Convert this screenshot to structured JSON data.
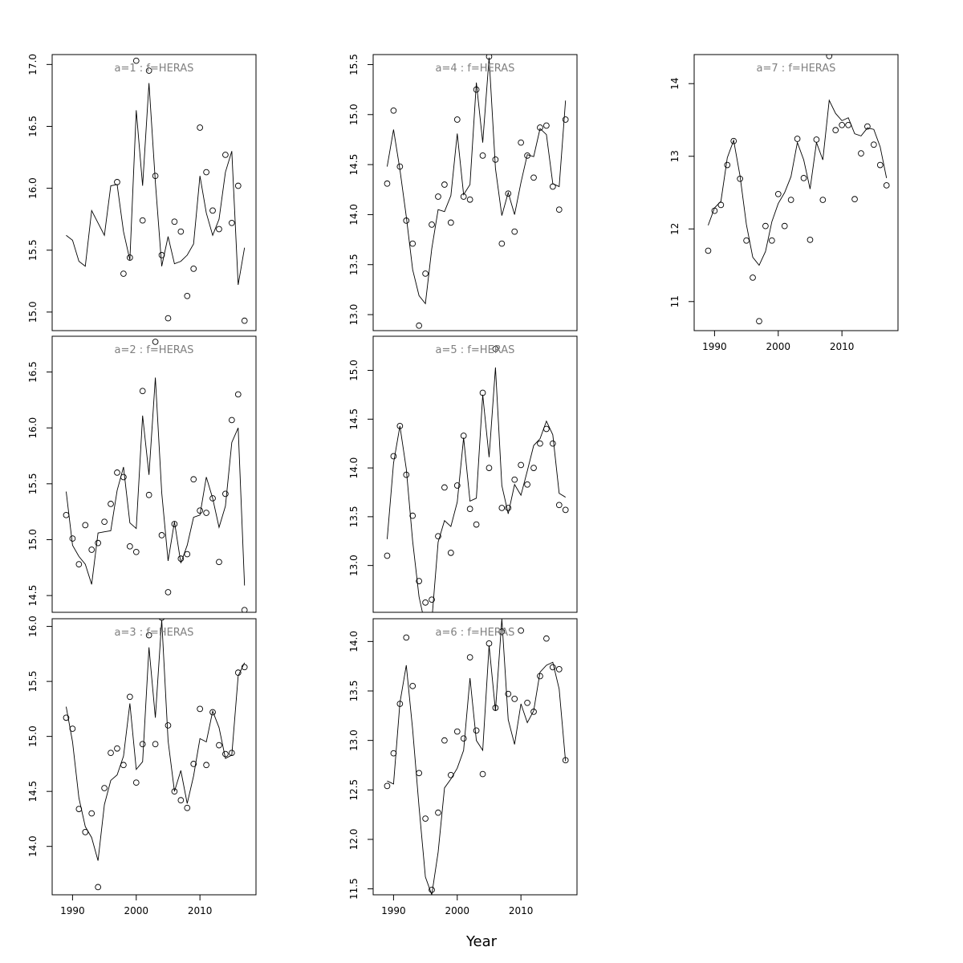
{
  "figure": {
    "xlabel": "Year"
  },
  "chart_data": [
    {
      "type": "line",
      "title": "a=1 : f=HERAS",
      "x": [
        1989,
        1990,
        1991,
        1992,
        1993,
        1994,
        1995,
        1996,
        1997,
        1998,
        1999,
        2000,
        2001,
        2002,
        2003,
        2004,
        2005,
        2006,
        2007,
        2008,
        2009,
        2010,
        2011,
        2012,
        2013,
        2014,
        2015,
        2016,
        2017
      ],
      "series": [
        {
          "kind": "points",
          "values": [
            null,
            null,
            null,
            null,
            null,
            null,
            null,
            null,
            16.05,
            15.31,
            15.44,
            17.03,
            15.74,
            16.95,
            16.1,
            15.46,
            14.95,
            15.73,
            15.65,
            15.13,
            15.35,
            16.49,
            16.13,
            15.82,
            15.67,
            16.27,
            15.72,
            16.02,
            14.93
          ]
        },
        {
          "kind": "line",
          "values": [
            15.62,
            15.58,
            15.41,
            15.37,
            15.82,
            15.72,
            15.62,
            16.02,
            16.03,
            15.65,
            15.42,
            16.63,
            16.02,
            16.85,
            16.05,
            15.37,
            15.61,
            15.39,
            15.41,
            15.46,
            15.55,
            16.1,
            15.8,
            15.62,
            15.75,
            16.13,
            16.3,
            15.22,
            15.52
          ]
        }
      ],
      "ylim": [
        14.85,
        17.08
      ],
      "yticks": [
        15.0,
        15.5,
        16.0,
        16.5,
        17.0
      ],
      "ytick_labels": [
        "15.0",
        "15.5",
        "16.0",
        "16.5",
        "17.0"
      ],
      "show_xticks": false
    },
    {
      "type": "line",
      "title": "a=2 : f=HERAS",
      "x": [
        1989,
        1990,
        1991,
        1992,
        1993,
        1994,
        1995,
        1996,
        1997,
        1998,
        1999,
        2000,
        2001,
        2002,
        2003,
        2004,
        2005,
        2006,
        2007,
        2008,
        2009,
        2010,
        2011,
        2012,
        2013,
        2014,
        2015,
        2016,
        2017
      ],
      "series": [
        {
          "kind": "points",
          "values": [
            15.22,
            15.01,
            14.78,
            15.13,
            14.91,
            14.97,
            15.16,
            15.32,
            15.6,
            15.56,
            14.94,
            14.89,
            16.33,
            15.4,
            16.77,
            15.04,
            14.53,
            15.14,
            14.83,
            14.87,
            15.54,
            15.26,
            15.24,
            15.37,
            14.8,
            15.41,
            16.07,
            16.3,
            14.37
          ]
        },
        {
          "kind": "line",
          "values": [
            15.43,
            14.95,
            14.85,
            14.78,
            14.6,
            15.06,
            15.07,
            15.08,
            15.44,
            15.65,
            15.15,
            15.1,
            16.11,
            15.58,
            16.45,
            15.42,
            14.81,
            15.16,
            14.79,
            14.95,
            15.2,
            15.22,
            15.56,
            15.37,
            15.11,
            15.3,
            15.87,
            16.0,
            14.59
          ]
        }
      ],
      "ylim": [
        14.35,
        16.82
      ],
      "yticks": [
        14.5,
        15.0,
        15.5,
        16.0,
        16.5
      ],
      "ytick_labels": [
        "14.5",
        "15.0",
        "15.5",
        "16.0",
        "16.5"
      ],
      "show_xticks": false
    },
    {
      "type": "line",
      "title": "a=3 : f=HERAS",
      "x": [
        1989,
        1990,
        1991,
        1992,
        1993,
        1994,
        1995,
        1996,
        1997,
        1998,
        1999,
        2000,
        2001,
        2002,
        2003,
        2004,
        2005,
        2006,
        2007,
        2008,
        2009,
        2010,
        2011,
        2012,
        2013,
        2014,
        2015,
        2016,
        2017
      ],
      "series": [
        {
          "kind": "points",
          "values": [
            15.17,
            15.07,
            14.34,
            14.13,
            14.3,
            13.63,
            14.53,
            14.85,
            14.89,
            14.74,
            15.36,
            14.58,
            14.93,
            15.92,
            14.93,
            16.08,
            15.1,
            14.5,
            14.42,
            14.35,
            14.75,
            15.25,
            14.74,
            15.22,
            14.92,
            14.84,
            14.85,
            15.58,
            15.63
          ]
        },
        {
          "kind": "line",
          "values": [
            15.27,
            14.95,
            14.44,
            14.18,
            14.08,
            13.87,
            14.38,
            14.6,
            14.65,
            14.82,
            15.3,
            14.7,
            14.77,
            15.81,
            15.17,
            16.06,
            14.96,
            14.5,
            14.69,
            14.39,
            14.64,
            14.98,
            14.95,
            15.23,
            15.08,
            14.8,
            14.83,
            15.55,
            15.67
          ]
        }
      ],
      "ylim": [
        13.56,
        16.07
      ],
      "yticks": [
        14.0,
        14.5,
        15.0,
        15.5,
        16.0
      ],
      "ytick_labels": [
        "14.0",
        "14.5",
        "15.0",
        "15.5",
        "16.0"
      ],
      "show_xticks": true,
      "xticks": [
        1990,
        2000,
        2010
      ],
      "xtick_labels": [
        "1990",
        "2000",
        "2010"
      ]
    },
    {
      "type": "line",
      "title": "a=4 : f=HERAS",
      "x": [
        1989,
        1990,
        1991,
        1992,
        1993,
        1994,
        1995,
        1996,
        1997,
        1998,
        1999,
        2000,
        2001,
        2002,
        2003,
        2004,
        2005,
        2006,
        2007,
        2008,
        2009,
        2010,
        2011,
        2012,
        2013,
        2014,
        2015,
        2016,
        2017
      ],
      "series": [
        {
          "kind": "points",
          "values": [
            14.31,
            15.04,
            14.48,
            13.94,
            13.71,
            12.89,
            13.41,
            13.9,
            14.18,
            14.3,
            13.92,
            14.95,
            14.18,
            14.15,
            15.25,
            14.59,
            15.58,
            14.55,
            13.71,
            14.21,
            13.83,
            14.72,
            14.59,
            14.37,
            14.87,
            14.89,
            14.28,
            14.05,
            14.95
          ]
        },
        {
          "kind": "line",
          "values": [
            14.48,
            14.85,
            14.45,
            13.98,
            13.45,
            13.19,
            13.11,
            13.66,
            14.05,
            14.03,
            14.19,
            14.81,
            14.2,
            14.3,
            15.32,
            14.72,
            15.57,
            14.46,
            13.99,
            14.22,
            14.0,
            14.32,
            14.6,
            14.58,
            14.86,
            14.8,
            14.31,
            14.28,
            15.14
          ]
        }
      ],
      "ylim": [
        12.84,
        15.6
      ],
      "yticks": [
        13.0,
        13.5,
        14.0,
        14.5,
        15.0,
        15.5
      ],
      "ytick_labels": [
        "13.0",
        "13.5",
        "14.0",
        "14.5",
        "15.0",
        "15.5"
      ],
      "show_xticks": false
    },
    {
      "type": "line",
      "title": "a=5 : f=HERAS",
      "x": [
        1989,
        1990,
        1991,
        1992,
        1993,
        1994,
        1995,
        1996,
        1997,
        1998,
        1999,
        2000,
        2001,
        2002,
        2003,
        2004,
        2005,
        2006,
        2007,
        2008,
        2009,
        2010,
        2011,
        2012,
        2013,
        2014,
        2015,
        2016,
        2017
      ],
      "series": [
        {
          "kind": "points",
          "values": [
            13.1,
            14.12,
            14.43,
            13.93,
            13.51,
            12.84,
            12.62,
            12.65,
            13.3,
            13.8,
            13.13,
            13.82,
            14.33,
            13.58,
            13.42,
            14.77,
            14.0,
            15.22,
            13.59,
            13.59,
            13.88,
            14.03,
            13.83,
            14.0,
            14.25,
            14.4,
            14.25,
            13.62,
            13.57
          ]
        },
        {
          "kind": "line",
          "values": [
            13.27,
            14.05,
            14.43,
            13.99,
            13.25,
            12.68,
            12.38,
            12.43,
            13.24,
            13.46,
            13.4,
            13.65,
            14.31,
            13.66,
            13.69,
            14.75,
            14.11,
            15.03,
            13.82,
            13.53,
            13.83,
            13.72,
            13.97,
            14.23,
            14.3,
            14.48,
            14.34,
            13.74,
            13.7
          ]
        }
      ],
      "ylim": [
        12.52,
        15.35
      ],
      "yticks": [
        13.0,
        13.5,
        14.0,
        14.5,
        15.0
      ],
      "ytick_labels": [
        "13.0",
        "13.5",
        "14.0",
        "14.5",
        "15.0"
      ],
      "show_xticks": false
    },
    {
      "type": "line",
      "title": "a=6 : f=HERAS",
      "x": [
        1989,
        1990,
        1991,
        1992,
        1993,
        1994,
        1995,
        1996,
        1997,
        1998,
        1999,
        2000,
        2001,
        2002,
        2003,
        2004,
        2005,
        2006,
        2007,
        2008,
        2009,
        2010,
        2011,
        2012,
        2013,
        2014,
        2015,
        2016,
        2017
      ],
      "series": [
        {
          "kind": "points",
          "values": [
            12.54,
            12.87,
            13.37,
            14.04,
            13.55,
            12.67,
            12.21,
            11.49,
            12.27,
            13.0,
            12.65,
            13.09,
            13.02,
            13.84,
            13.1,
            12.66,
            13.98,
            13.33,
            14.1,
            13.47,
            13.42,
            14.11,
            13.38,
            13.29,
            13.65,
            14.03,
            13.74,
            13.72,
            12.8
          ]
        },
        {
          "kind": "line",
          "values": [
            12.59,
            12.56,
            13.38,
            13.76,
            13.11,
            12.33,
            11.62,
            11.44,
            11.87,
            12.52,
            12.61,
            12.72,
            12.9,
            13.63,
            13.0,
            12.9,
            13.96,
            13.3,
            14.23,
            13.21,
            12.96,
            13.37,
            13.18,
            13.3,
            13.69,
            13.76,
            13.79,
            13.52,
            12.79
          ]
        }
      ],
      "ylim": [
        11.44,
        14.23
      ],
      "yticks": [
        11.5,
        12.0,
        12.5,
        13.0,
        13.5,
        14.0
      ],
      "ytick_labels": [
        "11.5",
        "12.0",
        "12.5",
        "13.0",
        "13.5",
        "14.0"
      ],
      "show_xticks": true,
      "xticks": [
        1990,
        2000,
        2010
      ],
      "xtick_labels": [
        "1990",
        "2000",
        "2010"
      ]
    },
    {
      "type": "line",
      "title": "a=7 : f=HERAS",
      "x": [
        1989,
        1990,
        1991,
        1992,
        1993,
        1994,
        1995,
        1996,
        1997,
        1998,
        1999,
        2000,
        2001,
        2002,
        2003,
        2004,
        2005,
        2006,
        2007,
        2008,
        2009,
        2010,
        2011,
        2012,
        2013,
        2014,
        2015,
        2016,
        2017
      ],
      "series": [
        {
          "kind": "points",
          "values": [
            11.7,
            12.25,
            12.33,
            12.88,
            13.21,
            12.69,
            11.84,
            11.33,
            10.73,
            12.04,
            11.84,
            12.48,
            12.04,
            12.4,
            13.24,
            12.7,
            11.85,
            13.23,
            12.4,
            14.38,
            13.36,
            13.43,
            13.43,
            12.41,
            13.04,
            13.41,
            13.16,
            12.88,
            12.6
          ]
        },
        {
          "kind": "line",
          "values": [
            12.05,
            12.29,
            12.38,
            12.98,
            13.22,
            12.73,
            12.06,
            11.61,
            11.5,
            11.69,
            12.1,
            12.35,
            12.5,
            12.72,
            13.19,
            12.95,
            12.55,
            13.19,
            12.95,
            13.77,
            13.59,
            13.49,
            13.53,
            13.31,
            13.28,
            13.39,
            13.37,
            13.13,
            12.7
          ]
        }
      ],
      "ylim": [
        10.6,
        14.4
      ],
      "yticks": [
        11,
        12,
        13,
        14
      ],
      "ytick_labels": [
        "11",
        "12",
        "13",
        "14"
      ],
      "show_xticks": true,
      "xticks": [
        1990,
        2000,
        2010
      ],
      "xtick_labels": [
        "1990",
        "2000",
        "2010"
      ]
    }
  ]
}
